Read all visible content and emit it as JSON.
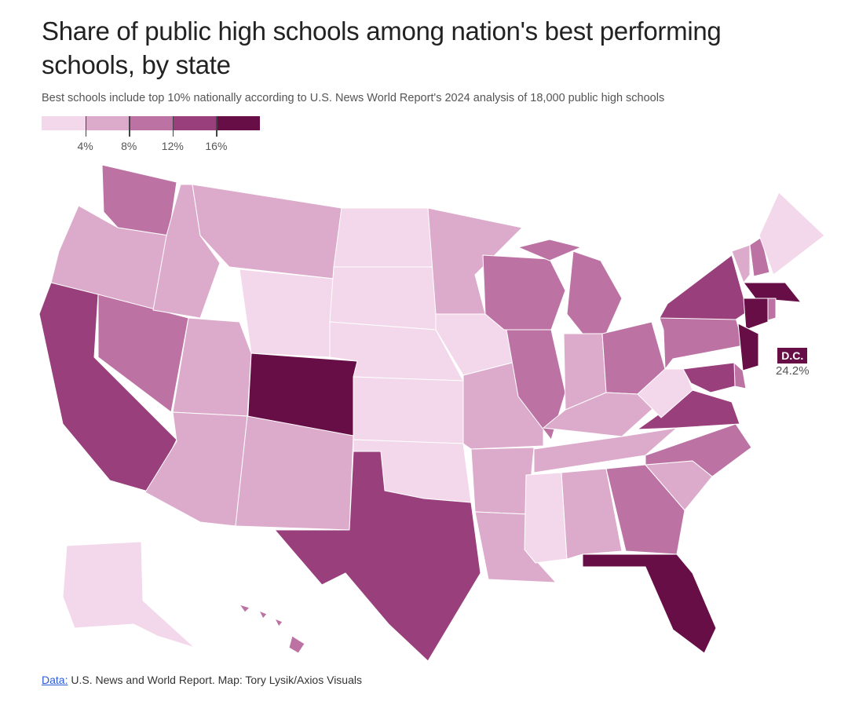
{
  "title": "Share of public high schools among nation's best performing schools, by state",
  "subtitle": "Best schools include top 10% nationally according to U.S. News World Report's 2024 analysis of 18,000 public high schools",
  "legend": {
    "colors": [
      "#f3d7ea",
      "#dcaacb",
      "#bc72a3",
      "#993f7c",
      "#680e47"
    ],
    "thresholds": [
      "4%",
      "8%",
      "12%",
      "16%"
    ]
  },
  "states": [
    {
      "id": "WA",
      "bin": 2
    },
    {
      "id": "OR",
      "bin": 1
    },
    {
      "id": "CA",
      "bin": 3
    },
    {
      "id": "NV",
      "bin": 2
    },
    {
      "id": "ID",
      "bin": 1
    },
    {
      "id": "MT",
      "bin": 1
    },
    {
      "id": "WY",
      "bin": 0
    },
    {
      "id": "UT",
      "bin": 1
    },
    {
      "id": "CO",
      "bin": 4
    },
    {
      "id": "AZ",
      "bin": 1
    },
    {
      "id": "NM",
      "bin": 1
    },
    {
      "id": "ND",
      "bin": 0
    },
    {
      "id": "SD",
      "bin": 0
    },
    {
      "id": "NE",
      "bin": 0
    },
    {
      "id": "KS",
      "bin": 0
    },
    {
      "id": "OK",
      "bin": 0
    },
    {
      "id": "TX",
      "bin": 3
    },
    {
      "id": "MN",
      "bin": 1
    },
    {
      "id": "IA",
      "bin": 0
    },
    {
      "id": "MO",
      "bin": 1
    },
    {
      "id": "AR",
      "bin": 1
    },
    {
      "id": "LA",
      "bin": 1
    },
    {
      "id": "WI",
      "bin": 2
    },
    {
      "id": "IL",
      "bin": 2
    },
    {
      "id": "MI",
      "bin": 2
    },
    {
      "id": "IN",
      "bin": 1
    },
    {
      "id": "OH",
      "bin": 2
    },
    {
      "id": "KY",
      "bin": 1
    },
    {
      "id": "TN",
      "bin": 1
    },
    {
      "id": "MS",
      "bin": 0
    },
    {
      "id": "AL",
      "bin": 1
    },
    {
      "id": "GA",
      "bin": 2
    },
    {
      "id": "FL",
      "bin": 4
    },
    {
      "id": "SC",
      "bin": 1
    },
    {
      "id": "NC",
      "bin": 2
    },
    {
      "id": "VA",
      "bin": 3
    },
    {
      "id": "WV",
      "bin": 0
    },
    {
      "id": "PA",
      "bin": 2
    },
    {
      "id": "NY",
      "bin": 3
    },
    {
      "id": "VT",
      "bin": 1
    },
    {
      "id": "NH",
      "bin": 2
    },
    {
      "id": "ME",
      "bin": 0
    },
    {
      "id": "MA",
      "bin": 4
    },
    {
      "id": "CT",
      "bin": 4
    },
    {
      "id": "RI",
      "bin": 2
    },
    {
      "id": "NJ",
      "bin": 4
    },
    {
      "id": "DE",
      "bin": 2
    },
    {
      "id": "MD",
      "bin": 3
    },
    {
      "id": "AK",
      "bin": 0
    },
    {
      "id": "HI",
      "bin": 2
    }
  ],
  "callout": {
    "label": "D.C.",
    "value": "24.2%",
    "bin": 4
  },
  "footer": {
    "link": "Data:",
    "text": " U.S. News and World Report. Map: Tory Lysik/Axios Visuals"
  }
}
